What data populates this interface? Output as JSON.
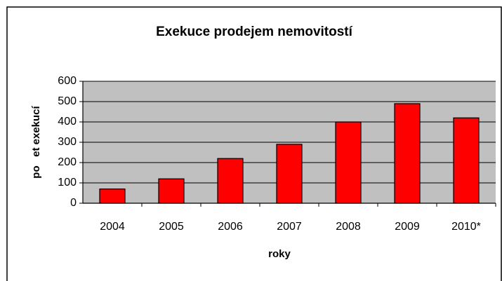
{
  "chart_data": {
    "type": "bar",
    "title": "Exekuce prodejem nemovitostí",
    "x_label": "roky",
    "y_label": "po   et exekucí",
    "categories": [
      "2004",
      "2005",
      "2006",
      "2007",
      "2008",
      "2009",
      "2010*"
    ],
    "values": [
      70,
      120,
      220,
      290,
      400,
      490,
      420
    ],
    "color": "#ff0000",
    "plot_background": "#c0c0c0",
    "ylim": [
      0,
      600
    ],
    "yticks": [
      0,
      100,
      200,
      300,
      400,
      500,
      600
    ],
    "grid": true
  }
}
